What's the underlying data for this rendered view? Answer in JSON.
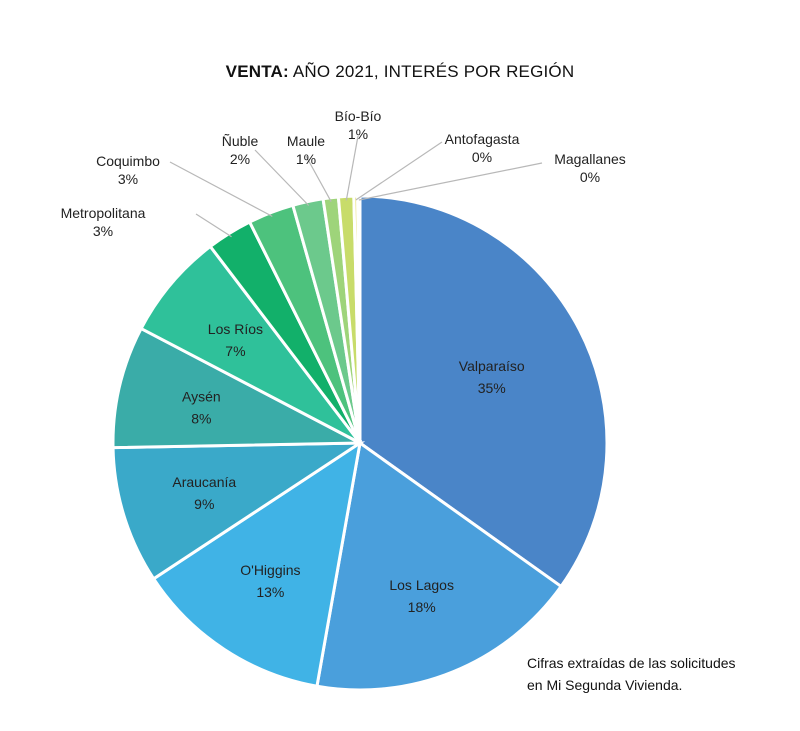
{
  "chart_data": {
    "type": "pie",
    "title_bold": "VENTA:",
    "title_rest": "AÑO 2021, INTERÉS POR REGIÓN",
    "slices": [
      {
        "label": "Valparaíso",
        "pct_label": "35%",
        "value": 35,
        "color": "#4a85c8"
      },
      {
        "label": "Los Lagos",
        "pct_label": "18%",
        "value": 18,
        "color": "#4a9fdc"
      },
      {
        "label": "O'Higgins",
        "pct_label": "13%",
        "value": 13,
        "color": "#40b3e6"
      },
      {
        "label": "Araucanía",
        "pct_label": "9%",
        "value": 9,
        "color": "#3aa9c9"
      },
      {
        "label": "Aysén",
        "pct_label": "8%",
        "value": 8,
        "color": "#3aaca8"
      },
      {
        "label": "Los Ríos",
        "pct_label": "7%",
        "value": 7,
        "color": "#2fc19a"
      },
      {
        "label": "Metropolitana",
        "pct_label": "3%",
        "value": 3,
        "color": "#12b06a"
      },
      {
        "label": "Coquimbo",
        "pct_label": "3%",
        "value": 3,
        "color": "#4dc27d"
      },
      {
        "label": "Ñuble",
        "pct_label": "2%",
        "value": 2,
        "color": "#6cc98c"
      },
      {
        "label": "Maule",
        "pct_label": "1%",
        "value": 1,
        "color": "#9ed47a"
      },
      {
        "label": "Bío-Bío",
        "pct_label": "1%",
        "value": 1,
        "color": "#c8dc6a"
      },
      {
        "label": "Antofagasta",
        "pct_label": "0%",
        "value": 0.25,
        "color": "#e8e06a"
      },
      {
        "label": "Magallanes",
        "pct_label": "0%",
        "value": 0.15,
        "color": "#f2e98a"
      }
    ]
  },
  "note": {
    "line1": "Cifras extraídas de las solicitudes",
    "line2": "en Mi Segunda Vivienda."
  }
}
